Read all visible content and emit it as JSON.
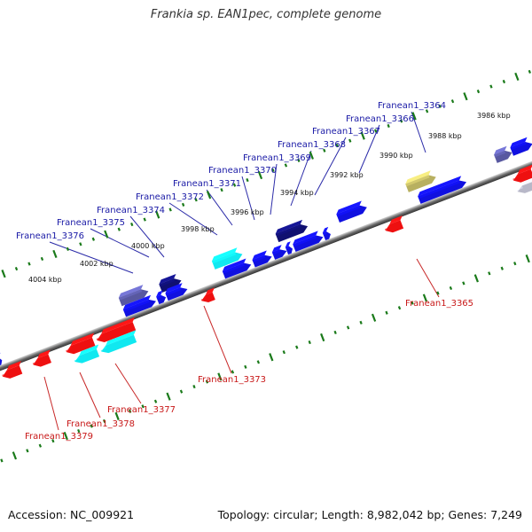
{
  "title": "Frankia sp. EAN1pec, complete genome",
  "footer": {
    "accession": "Accession: NC_009921",
    "summary": "Topology: circular; Length: 8,982,042 bp; Genes: 7,249"
  },
  "colors": {
    "forward_label": "#1a1aa6",
    "reverse_label": "#c81818",
    "blue": "#1010e0",
    "navy": "#101070",
    "cyan": "#10e8f0",
    "red": "#ee1010",
    "olive": "#b8b060",
    "slate": "#5858a0",
    "gray": "#b8b8c8",
    "tick": "#1a7a1a"
  },
  "ruler_labels": [
    "4004 kbp",
    "4002 kbp",
    "4000 kbp",
    "3998 kbp",
    "3996 kbp",
    "3994 kbp",
    "3992 kbp",
    "3990 kbp",
    "3988 kbp",
    "3986 kbp"
  ],
  "forward_genes": [
    {
      "name": "Franean1_3364",
      "color": "olive"
    },
    {
      "name": "Franean1_3366",
      "color": "blue"
    },
    {
      "name": "Franean1_3367",
      "color": "blue"
    },
    {
      "name": "Franean1_3368",
      "color": "blue"
    },
    {
      "name": "Franean1_3369",
      "color": "navy"
    },
    {
      "name": "Franean1_3370",
      "color": "blue"
    },
    {
      "name": "Franean1_3371",
      "color": "blue"
    },
    {
      "name": "Franean1_3372",
      "color": "cyan"
    },
    {
      "name": "Franean1_3374",
      "color": "navy"
    },
    {
      "name": "Franean1_3375",
      "color": "blue"
    },
    {
      "name": "Franean1_3376",
      "color": "slate"
    }
  ],
  "reverse_genes": [
    {
      "name": "Franean1_3365",
      "color": "red"
    },
    {
      "name": "Franean1_3373",
      "color": "red"
    },
    {
      "name": "Franean1_3377",
      "color": "cyan"
    },
    {
      "name": "Franean1_3378",
      "color": "cyan"
    },
    {
      "name": "Franean1_3379",
      "color": "red"
    }
  ]
}
